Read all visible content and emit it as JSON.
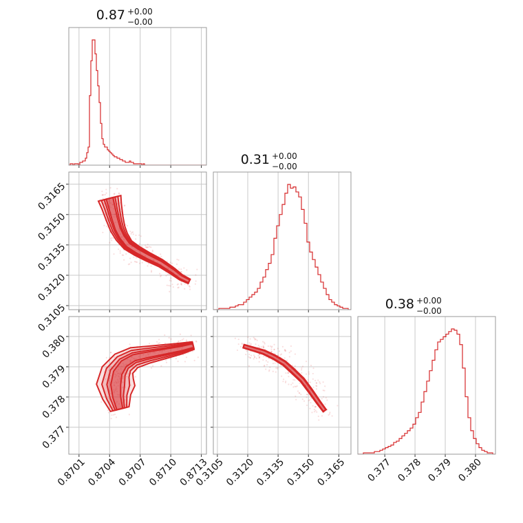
{
  "chart_data": {
    "type": "corner",
    "color": "#d62728",
    "params": [
      {
        "id": "p0",
        "title_value": "0.87",
        "title_plus": "+0.00",
        "title_minus": "−0.00",
        "range": [
          0.87,
          0.87135
        ],
        "ticks": [
          "0.8701",
          "0.8704",
          "0.8707",
          "0.8710",
          "0.8713"
        ]
      },
      {
        "id": "p1",
        "title_value": "0.31",
        "title_plus": "+0.00",
        "title_minus": "−0.00",
        "range": [
          0.3103,
          0.3171
        ],
        "ticks": [
          "0.3105",
          "0.3120",
          "0.3135",
          "0.3150",
          "0.3165"
        ]
      },
      {
        "id": "p2",
        "title_value": "0.38",
        "title_plus": "+0.00",
        "title_minus": "−0.00",
        "range": [
          0.37611,
          0.38066
        ],
        "ticks": [
          "0.377",
          "0.378",
          "0.379",
          "0.380"
        ]
      }
    ],
    "histograms": [
      {
        "param": 0,
        "edges_start": 0.87,
        "bin_width": 1.35e-05,
        "counts": [
          0,
          1,
          1,
          0,
          1,
          1,
          1,
          0,
          2,
          2,
          3,
          3,
          5,
          9,
          13,
          50,
          75,
          90,
          90,
          80,
          68,
          57,
          45,
          30,
          19,
          15,
          13,
          13,
          11,
          10,
          9,
          8,
          7,
          6,
          6,
          5,
          5,
          4,
          4,
          3,
          3,
          2,
          2,
          2,
          3,
          2,
          2,
          1,
          1,
          1,
          1,
          1,
          1,
          0,
          1,
          0,
          0,
          0,
          0,
          0,
          0,
          0,
          0,
          0,
          0,
          0,
          0,
          0,
          0,
          0,
          0,
          0,
          0,
          0,
          0,
          0,
          0,
          0,
          0,
          0,
          0,
          0,
          0,
          0,
          0,
          0,
          0,
          0,
          0,
          0,
          0,
          0,
          0,
          0,
          0,
          0,
          0,
          0,
          0,
          0
        ]
      },
      {
        "param": 1,
        "edges_start": 0.3103,
        "bin_width": 0.000136,
        "counts": [
          0,
          0,
          1,
          1,
          1,
          1,
          2,
          2,
          3,
          4,
          4,
          6,
          8,
          10,
          12,
          14,
          17,
          22,
          26,
          32,
          37,
          44,
          57,
          67,
          76,
          84,
          93,
          100,
          97,
          98,
          94,
          90,
          80,
          69,
          54,
          46,
          40,
          34,
          28,
          22,
          17,
          12,
          8,
          6,
          4,
          3,
          2,
          1,
          1,
          0
        ]
      },
      {
        "param": 2,
        "edges_start": 0.37611,
        "bin_width": 9.1e-05,
        "counts": [
          0,
          0,
          1,
          1,
          1,
          1,
          2,
          2,
          3,
          4,
          5,
          6,
          7,
          9,
          10,
          12,
          14,
          16,
          18,
          20,
          23,
          28,
          32,
          40,
          48,
          56,
          64,
          72,
          80,
          86,
          88,
          90,
          92,
          94,
          96,
          95,
          92,
          84,
          66,
          44,
          28,
          18,
          12,
          8,
          5,
          3,
          2,
          1,
          1,
          0
        ]
      }
    ],
    "pairs": [
      {
        "x": 0,
        "y": 1,
        "centerline": [
          [
            0.8704,
            0.3158
          ],
          [
            0.87042,
            0.3154
          ],
          [
            0.87045,
            0.3148
          ],
          [
            0.87048,
            0.3143
          ],
          [
            0.87052,
            0.3139
          ],
          [
            0.87058,
            0.3135
          ],
          [
            0.87067,
            0.3132
          ],
          [
            0.87078,
            0.3129
          ],
          [
            0.8709,
            0.3126
          ],
          [
            0.87102,
            0.3122
          ],
          [
            0.8711,
            0.3119
          ],
          [
            0.87118,
            0.3117
          ]
        ],
        "widths": [
          0.0002,
          0.00017,
          0.00014,
          0.00012,
          0.0001,
          8e-05,
          7e-05,
          6e-05,
          5e-05,
          4e-05,
          3e-05,
          2e-05
        ]
      },
      {
        "x": 0,
        "y": 2,
        "centerline": [
          [
            0.8705,
            0.3776
          ],
          [
            0.87047,
            0.378
          ],
          [
            0.87046,
            0.3784
          ],
          [
            0.87048,
            0.3788
          ],
          [
            0.87054,
            0.3791
          ],
          [
            0.87064,
            0.3793
          ],
          [
            0.87078,
            0.3794
          ],
          [
            0.87094,
            0.3795
          ],
          [
            0.8711,
            0.3796
          ],
          [
            0.87122,
            0.3797
          ]
        ],
        "widths": [
          0.00016,
          0.00025,
          0.00035,
          0.0003,
          0.00023,
          0.00018,
          0.00014,
          0.00011,
          8e-05,
          5e-05
        ]
      },
      {
        "x": 1,
        "y": 2,
        "centerline": [
          [
            0.3118,
            0.37968
          ],
          [
            0.3123,
            0.37958
          ],
          [
            0.3128,
            0.37948
          ],
          [
            0.3133,
            0.37932
          ],
          [
            0.3138,
            0.37912
          ],
          [
            0.3142,
            0.37888
          ],
          [
            0.3147,
            0.37856
          ],
          [
            0.3151,
            0.3782
          ],
          [
            0.3155,
            0.37782
          ],
          [
            0.3158,
            0.37755
          ]
        ],
        "widths": [
          3.5e-05,
          5e-05,
          7e-05,
          9e-05,
          0.0001,
          0.00011,
          0.0001,
          9e-05,
          7e-05,
          5e-05
        ]
      }
    ]
  }
}
